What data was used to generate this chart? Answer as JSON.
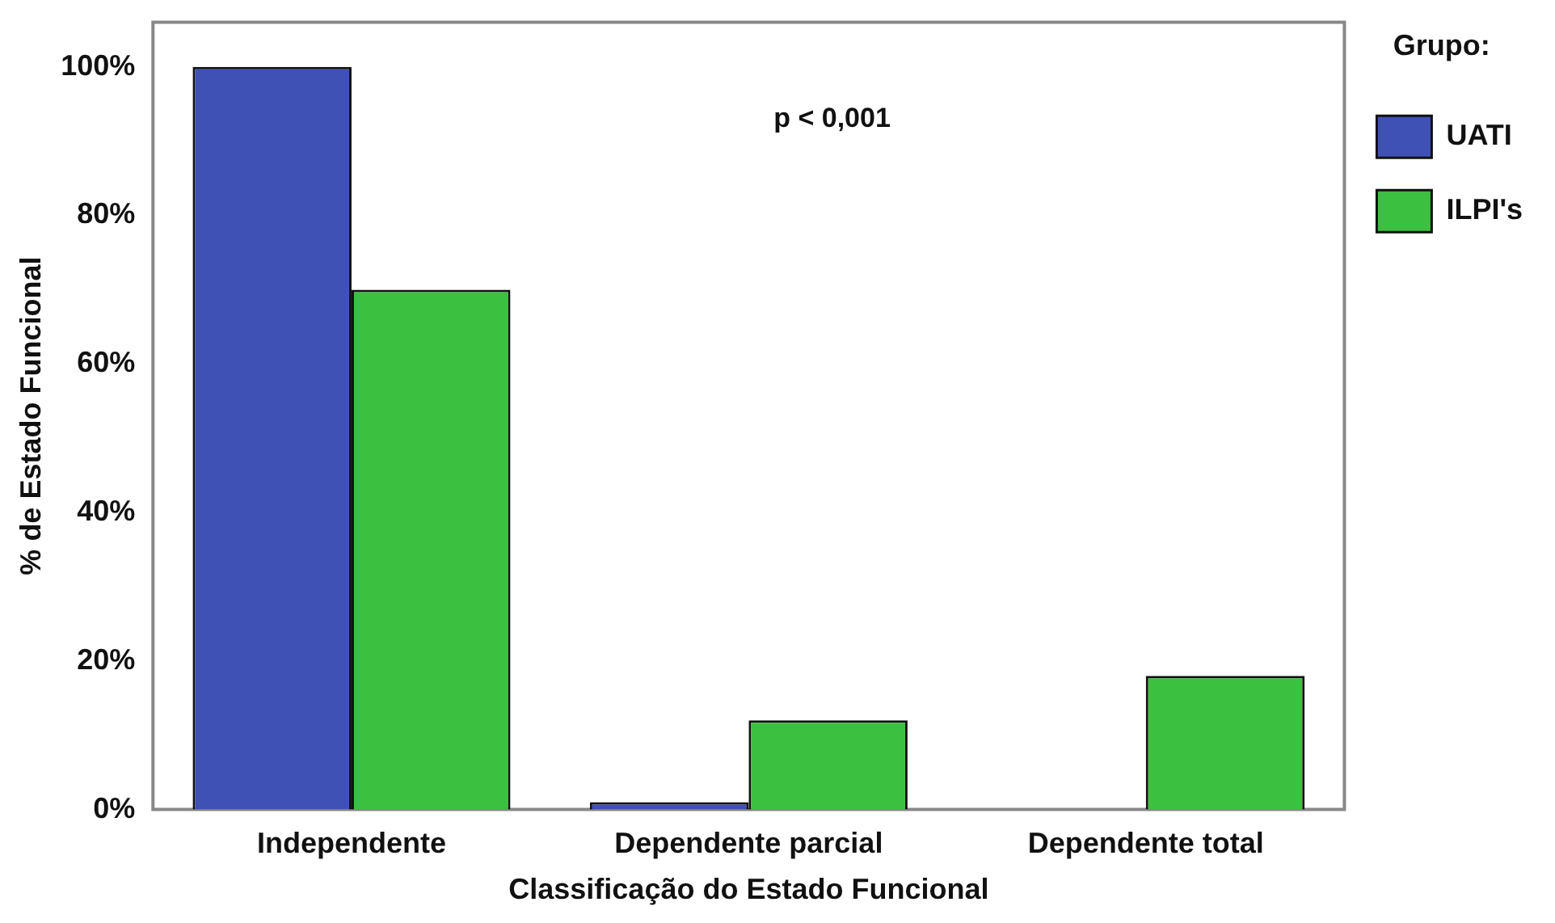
{
  "chart_data": {
    "type": "bar",
    "xlabel": "Classificação do Estado Funcional",
    "ylabel": "% de Estado Funcional",
    "legend_title": "Grupo:",
    "categories": [
      "Independente",
      "Dependente parcial",
      "Dependente total"
    ],
    "series": [
      {
        "name": "UATI",
        "color": "#3f51b5",
        "values": [
          100,
          1,
          0
        ]
      },
      {
        "name": "ILPI's",
        "color": "#3cc040",
        "values": [
          70,
          12,
          18
        ]
      }
    ],
    "ylim": [
      0,
      106
    ],
    "yticks": [
      {
        "value": 0,
        "label": "0%"
      },
      {
        "value": 20,
        "label": "20%"
      },
      {
        "value": 40,
        "label": "40%"
      },
      {
        "value": 60,
        "label": "60%"
      },
      {
        "value": 80,
        "label": "80%"
      },
      {
        "value": 100,
        "label": "100%"
      }
    ],
    "grid": false,
    "legend": "top right",
    "annotations": [
      "p < 0,001"
    ]
  }
}
